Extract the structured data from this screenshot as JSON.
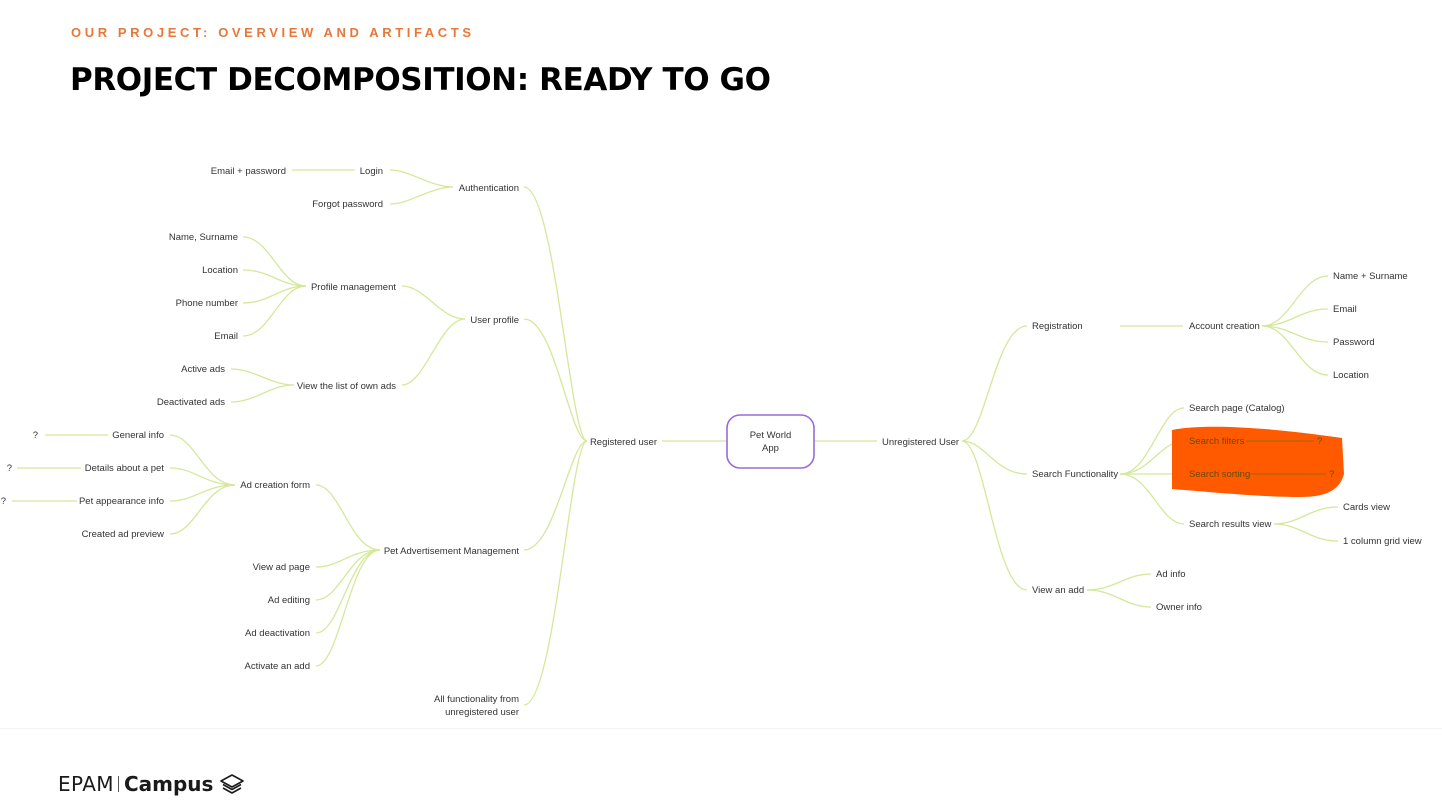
{
  "slide": {
    "kicker": "OUR PROJECT: OVERVIEW AND ARTIFACTS",
    "title": "PROJECT DECOMPOSITION: READY TO GO"
  },
  "mindmap": {
    "center_label": [
      "Pet World",
      "App"
    ],
    "nodes": {
      "email_password": "Email + password",
      "login": "Login",
      "authentication": "Authentication",
      "forgot_password": "Forgot password",
      "name_surname": "Name, Surname",
      "location": "Location",
      "phone_number": "Phone number",
      "email": "Email",
      "profile_management": "Profile management",
      "user_profile": "User profile",
      "active_ads": "Active ads",
      "deactivated_ads": "Deactivated ads",
      "view_list_own_ads": "View the list of own ads",
      "q1": "?",
      "q2": "?",
      "q3": "?",
      "general_info": "General info",
      "details_pet": "Details about a pet",
      "pet_appearance": "Pet appearance info",
      "created_ad_preview": "Created ad preview",
      "ad_creation_form": "Ad creation form",
      "pet_ad_management": "Pet Advertisement Management",
      "view_ad_page": "View ad page",
      "ad_editing": "Ad editing",
      "ad_deactivation": "Ad deactivation",
      "activate_an_add": "Activate an add",
      "all_functionality_1": "All functionality from",
      "all_functionality_2": "unregistered user",
      "registered_user": "Registered user",
      "unregistered_user": "Unregistered User",
      "registration": "Registration",
      "account_creation": "Account creation",
      "name_plus_surname": "Name + Surname",
      "email_r": "Email",
      "password": "Password",
      "location_r": "Location",
      "search_functionality": "Search Functionality",
      "search_page": "Search page (Catalog)",
      "search_filters": "Search filters",
      "search_sorting": "Search sorting",
      "q4": "?",
      "q5": "?",
      "search_results_view": "Search results view",
      "cards_view": "Cards view",
      "one_column_grid": "1 column grid view",
      "view_an_add": "View an add",
      "ad_info": "Ad info",
      "owner_info": "Owner info"
    },
    "colors": {
      "connector": "#d4e89a",
      "center_border": "#9a6bd6",
      "redaction": "#ff5a00",
      "kicker": "#e8773a"
    }
  },
  "footer": {
    "brand": "EPAM",
    "product": "Campus"
  }
}
